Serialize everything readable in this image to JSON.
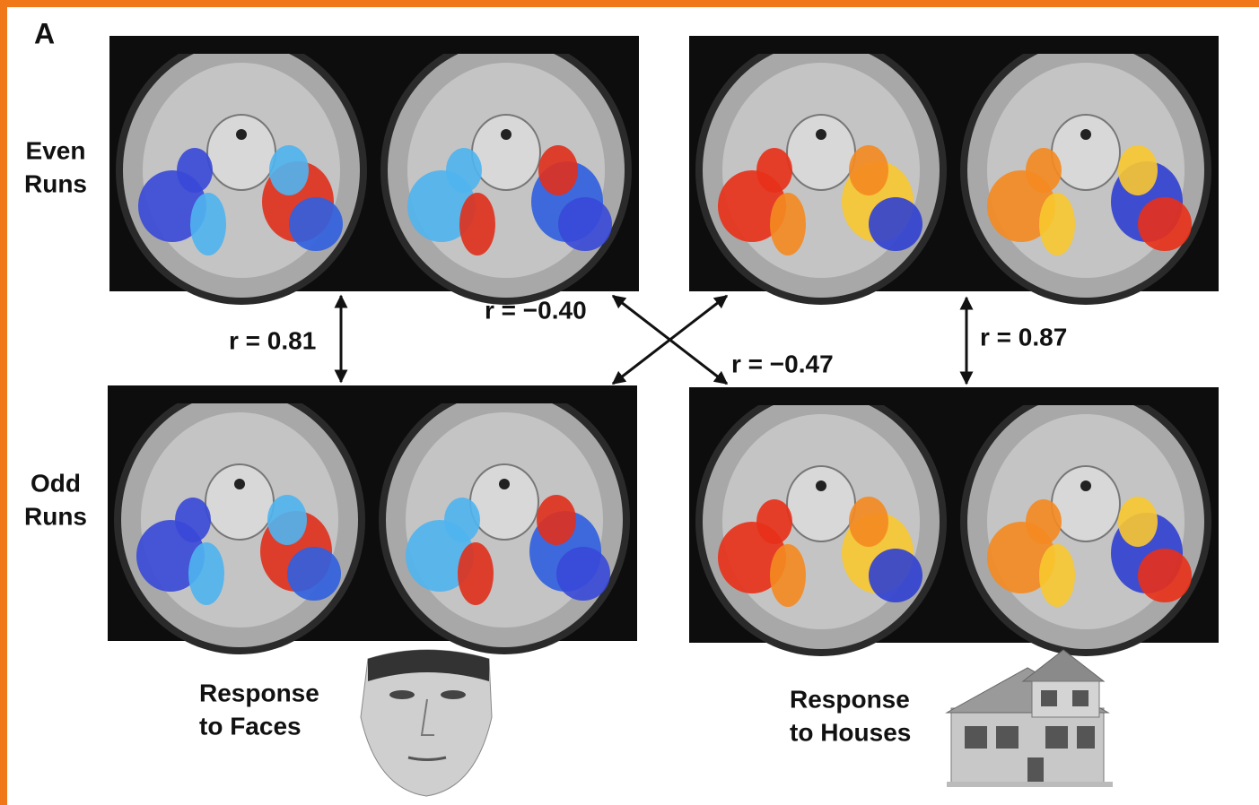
{
  "panel_label": "A",
  "row_labels": [
    [
      "Even",
      "Runs"
    ],
    [
      "Odd",
      "Runs"
    ]
  ],
  "correlations": [
    "r = 0.81",
    "r = −0.40",
    "r = −0.47",
    "r = 0.87"
  ],
  "captions": [
    [
      "Response",
      "to Faces"
    ],
    [
      "Response",
      "to Houses"
    ]
  ]
}
